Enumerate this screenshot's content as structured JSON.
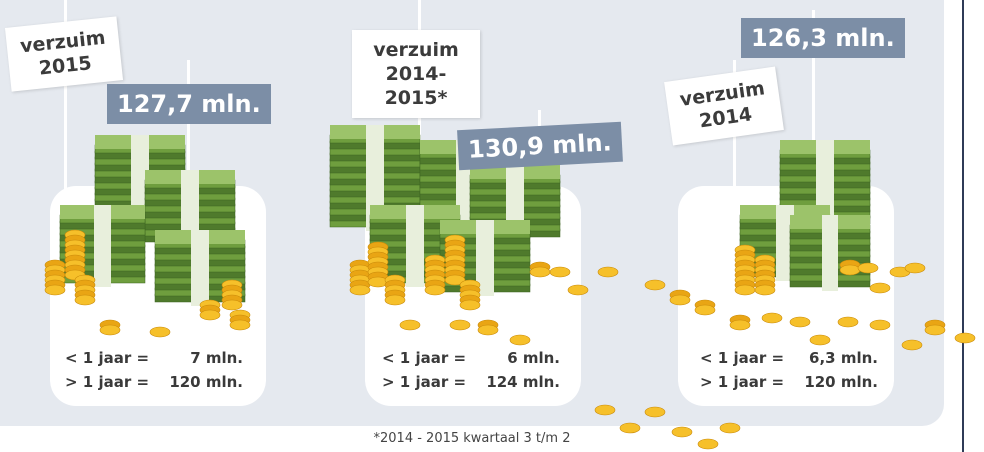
{
  "panels": [
    {
      "sign": [
        "verzuim",
        "2015"
      ],
      "total": "127,7 mln.",
      "rows": [
        {
          "label": "< 1 jaar =",
          "value": "7 mln."
        },
        {
          "label": "> 1 jaar =",
          "value": "120 mln."
        }
      ]
    },
    {
      "sign": [
        "verzuim",
        "2014-2015*"
      ],
      "total": "130,9 mln.",
      "rows": [
        {
          "label": "< 1 jaar =",
          "value": "6 mln."
        },
        {
          "label": "> 1 jaar =",
          "value": "124 mln."
        }
      ]
    },
    {
      "sign": [
        "verzuim",
        "2014"
      ],
      "total": "126,3 mln.",
      "rows": [
        {
          "label": "< 1 jaar =",
          "value": "6,3 mln."
        },
        {
          "label": "> 1 jaar =",
          "value": "120 mln."
        }
      ]
    }
  ],
  "footnote": "*2014 - 2015 kwartaal 3 t/m 2"
}
